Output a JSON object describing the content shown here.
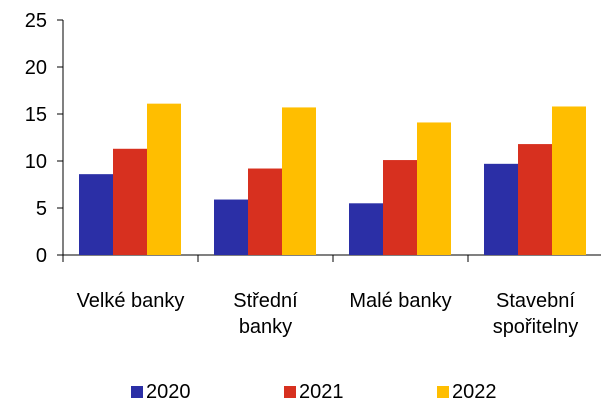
{
  "chart_data": {
    "type": "bar",
    "categories": [
      [
        "Velké banky"
      ],
      [
        "Střední",
        "banky"
      ],
      [
        "Malé banky"
      ],
      [
        "Stavební",
        "spořitelny"
      ]
    ],
    "series": [
      {
        "name": "2020",
        "color": "#2B2FA6",
        "values": [
          8.6,
          5.9,
          5.5,
          9.7
        ]
      },
      {
        "name": "2021",
        "color": "#D7301F",
        "values": [
          11.3,
          9.2,
          10.1,
          11.8
        ]
      },
      {
        "name": "2022",
        "color": "#FFBE00",
        "values": [
          16.1,
          15.7,
          14.1,
          15.8
        ]
      }
    ],
    "ylim": [
      0,
      25
    ],
    "yticks": [
      0,
      5,
      10,
      15,
      20,
      25
    ],
    "grid": false,
    "legend_position": "bottom"
  }
}
